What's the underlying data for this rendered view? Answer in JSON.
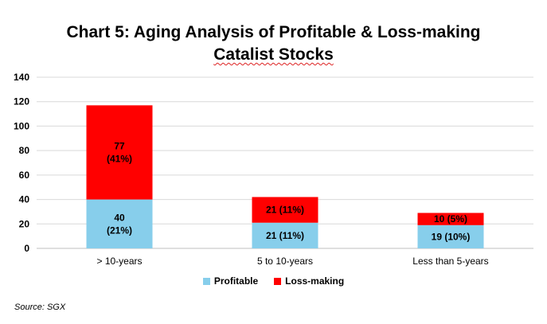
{
  "chart_data": {
    "type": "bar",
    "stacked": true,
    "title_line1": "Chart 5: Aging Analysis of Profitable & Loss-making",
    "title_line2": "Catalist Stocks",
    "categories": [
      "> 10-years",
      "5 to 10-years",
      "Less than 5-years"
    ],
    "series": [
      {
        "name": "Profitable",
        "color": "#87CEEB",
        "values": [
          40,
          21,
          19
        ],
        "labels": [
          [
            "40",
            "(21%)"
          ],
          [
            "21 (11%)"
          ],
          [
            "19 (10%)"
          ]
        ]
      },
      {
        "name": "Loss-making",
        "color": "#FF0000",
        "values": [
          77,
          21,
          10
        ],
        "labels": [
          [
            "77",
            "(41%)"
          ],
          [
            "21 (11%)"
          ],
          [
            "10 (5%)"
          ]
        ]
      }
    ],
    "ylim": [
      0,
      140
    ],
    "yticks": [
      0,
      20,
      40,
      60,
      80,
      100,
      120,
      140
    ],
    "grid": true,
    "legend_position": "bottom"
  },
  "source": "Source: SGX"
}
